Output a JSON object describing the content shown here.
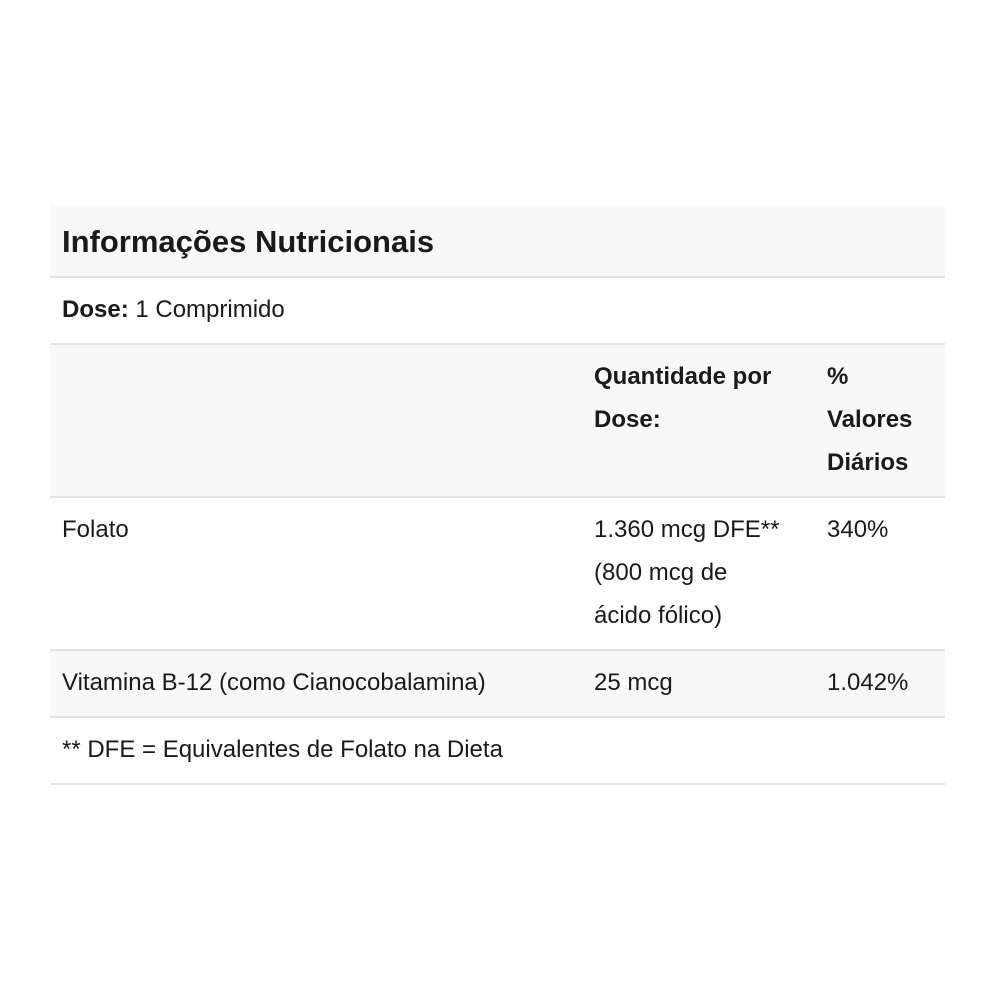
{
  "title": "Informações Nutricionais",
  "dose": {
    "label": "Dose:",
    "value": "1 Comprimido"
  },
  "header": {
    "qty_lines": [
      "Quantidade por",
      "Dose:"
    ],
    "dv_lines": [
      "%",
      "Valores",
      "Diários"
    ]
  },
  "rows": [
    {
      "name": "Folato",
      "qty_lines": [
        "1.360 mcg DFE**",
        "(800 mcg de",
        "ácido fólico)"
      ],
      "dv": "340%"
    },
    {
      "name": "Vitamina B-12 (como Cianocobalamina)",
      "qty_lines": [
        "25 mcg"
      ],
      "dv": "1.042%"
    }
  ],
  "footnote": "** DFE = Equivalentes de Folato na Dieta"
}
